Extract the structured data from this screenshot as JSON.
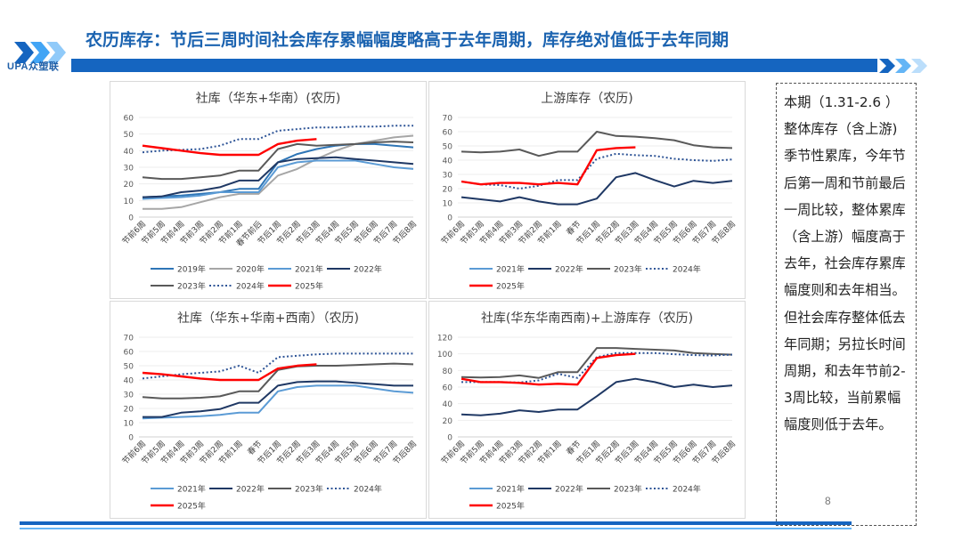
{
  "header": {
    "logo_text": "UPA众塑联",
    "title": "农历库存：节后三周时间社会库存累幅幅度略高于去年周期，库存绝对值低于去年同期"
  },
  "colors": {
    "brand_blue": "#1565c0",
    "y2019": "#2e75b6",
    "y2020": "#a6a6a6",
    "y2021": "#5b9bd5",
    "y2022": "#1f3864",
    "y2023": "#595959",
    "y2024": "#2f5597",
    "y2025": "#ff0000"
  },
  "note": {
    "text": "本期（1.31-2.6 ）整体库存（含上游)季节性累库，今年节后第一周和节前最后一周比较，整体累库（含上游）幅度高于去年，社会库存累库幅度则和去年相当。但社会库存整体低去年同期；另拉长时间周期，和去年节前2-3周比较，当前累幅幅度则低于去年。",
    "page_number": "8"
  },
  "chart_data": [
    {
      "type": "line",
      "title": "社库（华东+华南）(农历)",
      "categories": [
        "节前6周",
        "节前5周",
        "节前4周",
        "节前3周",
        "节前2周",
        "节前1周",
        "春节前后",
        "节后1周",
        "节后2周",
        "节后3周",
        "节后4周",
        "节后5周",
        "节后6周",
        "节后7周",
        "节后8周"
      ],
      "ylim": [
        0,
        60
      ],
      "yticks": [
        0,
        10,
        20,
        30,
        40,
        50,
        60
      ],
      "series": [
        {
          "name": "2019年",
          "color": "#2e75b6",
          "dash": false,
          "values": [
            12,
            12.5,
            13,
            14,
            15,
            17,
            17,
            33,
            38,
            41,
            43,
            44,
            44,
            43,
            42
          ]
        },
        {
          "name": "2020年",
          "color": "#a6a6a6",
          "dash": false,
          "values": [
            5,
            5,
            6,
            9,
            12,
            14,
            14,
            25,
            29,
            35,
            40,
            44,
            46,
            48,
            49
          ]
        },
        {
          "name": "2021年",
          "color": "#5b9bd5",
          "dash": false,
          "values": [
            11,
            11.5,
            12,
            13,
            15,
            15,
            15,
            30,
            33,
            34,
            34,
            34,
            32,
            30,
            29
          ]
        },
        {
          "name": "2022年",
          "color": "#1f3864",
          "dash": false,
          "values": [
            12,
            12.5,
            15,
            16,
            18,
            22,
            22,
            33,
            35,
            35.5,
            36,
            35,
            34,
            33,
            32
          ]
        },
        {
          "name": "2023年",
          "color": "#595959",
          "dash": false,
          "values": [
            24,
            23,
            23,
            24,
            25,
            28,
            28,
            41,
            44,
            43,
            43.5,
            44,
            45,
            45.5,
            45
          ]
        },
        {
          "name": "2024年",
          "color": "#2f5597",
          "dash": true,
          "values": [
            39,
            40,
            40.5,
            41,
            43,
            47,
            47,
            52,
            53,
            54,
            54,
            54.5,
            54.5,
            55,
            55
          ]
        },
        {
          "name": "2025年",
          "color": "#ff0000",
          "dash": false,
          "values": [
            43,
            41.5,
            40,
            38.5,
            37.5,
            37.5,
            37.5,
            44,
            46,
            47,
            null,
            null,
            null,
            null,
            null
          ]
        }
      ]
    },
    {
      "type": "line",
      "title": "上游库存（农历)",
      "categories": [
        "节前6周",
        "节前5周",
        "节前4周",
        "节前3周",
        "节前2周",
        "节前1周",
        "春节",
        "节后1周",
        "节后2周",
        "节后3周",
        "节后4周",
        "节后5周",
        "节后6周",
        "节后7周",
        "节后8周"
      ],
      "ylim": [
        0,
        70
      ],
      "yticks": [
        0,
        10,
        20,
        30,
        40,
        50,
        60,
        70
      ],
      "series": [
        {
          "name": "2021年",
          "color": "#5b9bd5",
          "dash": false,
          "values": [
            null,
            null,
            null,
            null,
            null,
            null,
            null,
            null,
            null,
            null,
            null,
            null,
            null,
            null,
            null
          ]
        },
        {
          "name": "2022年",
          "color": "#1f3864",
          "dash": false,
          "values": [
            14,
            12.5,
            11,
            14,
            11,
            9,
            9,
            13,
            28,
            31,
            26,
            21.5,
            25.5,
            24,
            25.5
          ]
        },
        {
          "name": "2023年",
          "color": "#595959",
          "dash": false,
          "values": [
            46,
            45.5,
            46,
            47.5,
            43,
            46,
            46,
            60,
            57,
            56.5,
            55.5,
            54,
            50.5,
            49,
            48.5
          ]
        },
        {
          "name": "2024年",
          "color": "#2f5597",
          "dash": true,
          "values": [
            25,
            23,
            22.5,
            20,
            22,
            26,
            26,
            41,
            44.5,
            43.5,
            43,
            41,
            40,
            39.5,
            40.5
          ]
        },
        {
          "name": "2025年",
          "color": "#ff0000",
          "dash": false,
          "values": [
            25,
            23,
            24,
            24,
            23,
            24,
            23,
            47,
            48.5,
            49,
            null,
            null,
            null,
            null,
            null
          ]
        }
      ]
    },
    {
      "type": "line",
      "title": "社库（华东+华南+西南）（农历)",
      "categories": [
        "节前6周",
        "节前5周",
        "节前4周",
        "节前3周",
        "节前2周",
        "节前1周",
        "春节",
        "节后1周",
        "节后2周",
        "节后3周",
        "节后4周",
        "节后5周",
        "节后6周",
        "节后7周",
        "节后8周"
      ],
      "ylim": [
        0,
        70
      ],
      "yticks": [
        0,
        10,
        20,
        30,
        40,
        50,
        60,
        70
      ],
      "series": [
        {
          "name": "2021年",
          "color": "#5b9bd5",
          "dash": false,
          "values": [
            13,
            13.5,
            14,
            14.5,
            15.5,
            17,
            17,
            32,
            35,
            36,
            36,
            36,
            34,
            32,
            31
          ]
        },
        {
          "name": "2022年",
          "color": "#1f3864",
          "dash": false,
          "values": [
            14,
            14,
            17,
            18,
            19.5,
            24,
            24,
            36,
            38.5,
            39,
            39,
            38,
            37,
            36,
            36
          ]
        },
        {
          "name": "2023年",
          "color": "#595959",
          "dash": false,
          "values": [
            28,
            27,
            27,
            27.5,
            28.5,
            32,
            32,
            47,
            49.5,
            50,
            50,
            50.5,
            51,
            51.5,
            51
          ]
        },
        {
          "name": "2024年",
          "color": "#2f5597",
          "dash": true,
          "values": [
            41,
            42.5,
            44,
            45,
            46,
            50,
            45,
            56,
            57,
            58,
            58.5,
            58.5,
            58.5,
            58.5,
            58.5
          ]
        },
        {
          "name": "2025年",
          "color": "#ff0000",
          "dash": false,
          "values": [
            45,
            44,
            42.5,
            41,
            40,
            40,
            40,
            48,
            50,
            51,
            null,
            null,
            null,
            null,
            null
          ]
        }
      ]
    },
    {
      "type": "line",
      "title": "社库(华东华南西南)+上游库存（农历)",
      "categories": [
        "节前6周",
        "节前5周",
        "节前4周",
        "节前3周",
        "节前2周",
        "节前1周",
        "春节",
        "节后1周",
        "节后2周",
        "节后3周",
        "节后4周",
        "节后5周",
        "节后6周",
        "节后7周",
        "节后8周"
      ],
      "ylim": [
        0,
        120
      ],
      "yticks": [
        0,
        20,
        40,
        60,
        80,
        100,
        120
      ],
      "series": [
        {
          "name": "2021年",
          "color": "#5b9bd5",
          "dash": false,
          "values": [
            null,
            null,
            null,
            null,
            null,
            null,
            null,
            null,
            null,
            null,
            null,
            null,
            null,
            null,
            null
          ]
        },
        {
          "name": "2022年",
          "color": "#1f3864",
          "dash": false,
          "values": [
            27,
            26,
            28,
            32,
            30,
            33,
            33,
            49,
            66,
            70,
            66,
            60,
            63,
            60,
            62
          ]
        },
        {
          "name": "2023年",
          "color": "#595959",
          "dash": false,
          "values": [
            72,
            71.5,
            72,
            74,
            71,
            78,
            78,
            107,
            107,
            106,
            105,
            104,
            101,
            100,
            99
          ]
        },
        {
          "name": "2024年",
          "color": "#2f5597",
          "dash": true,
          "values": [
            66,
            66,
            66,
            65.5,
            68,
            76,
            71,
            96,
            101,
            101,
            101,
            99.5,
            98.5,
            98,
            99
          ]
        },
        {
          "name": "2025年",
          "color": "#ff0000",
          "dash": false,
          "values": [
            70,
            66,
            66,
            65,
            63,
            64,
            63,
            95,
            98.5,
            100,
            null,
            null,
            null,
            null,
            null
          ]
        }
      ]
    }
  ]
}
